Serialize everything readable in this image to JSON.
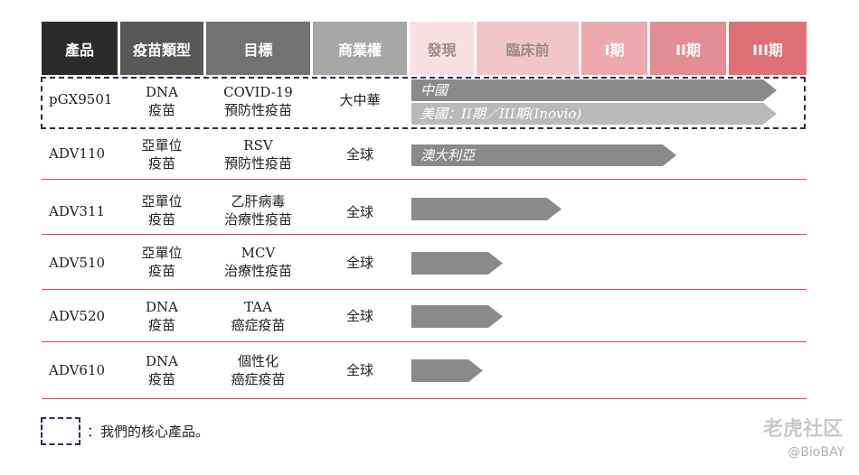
{
  "chart_data": {
    "type": "table",
    "columns": [
      "產品",
      "疫苗類型",
      "目標",
      "商業權",
      "發現",
      "臨床前",
      "I期",
      "II期",
      "III期"
    ],
    "column_colors": [
      "#2b2b2b",
      "#585858",
      "#727272",
      "#a7a7a7",
      "#f8e0e2",
      "#f2c6c9",
      "#eda9ad",
      "#e28e94",
      "#e07078"
    ],
    "header_text_colors": [
      "#ffffff",
      "#ffffff",
      "#ffffff",
      "#ffffff",
      "#9b8a8b",
      "#9b8a8b",
      "#ffffff",
      "#ffffff",
      "#ffffff"
    ],
    "stage_scale": [
      "發現",
      "臨床前",
      "I期",
      "II期",
      "III期"
    ],
    "rows": [
      {
        "product": "pGX9501",
        "type": [
          "DNA",
          "疫苗"
        ],
        "target": [
          "COVID-19",
          "預防性疫苗"
        ],
        "rights": "大中華",
        "core": true,
        "bars": [
          {
            "label": "中國",
            "progress": 0.925,
            "color": "#8a8a8a"
          },
          {
            "label": "美國：II期／III期(Inovio)",
            "progress": 0.925,
            "color": "#b9b9b9"
          }
        ]
      },
      {
        "product": "ADV110",
        "type": [
          "亞單位",
          "疫苗"
        ],
        "target": [
          "RSV",
          "預防性疫苗"
        ],
        "rights": "全球",
        "core": false,
        "bars": [
          {
            "label": "澳大利亞",
            "progress": 0.67,
            "color": "#8a8a8a"
          }
        ]
      },
      {
        "product": "ADV311",
        "type": [
          "亞單位",
          "疫苗"
        ],
        "target": [
          "乙肝病毒",
          "治療性疫苗"
        ],
        "rights": "全球",
        "core": false,
        "bars": [
          {
            "label": "",
            "progress": 0.38,
            "color": "#8a8a8a"
          }
        ]
      },
      {
        "product": "ADV510",
        "type": [
          "亞單位",
          "疫苗"
        ],
        "target": [
          "MCV",
          "治療性疫苗"
        ],
        "rights": "全球",
        "core": false,
        "bars": [
          {
            "label": "",
            "progress": 0.23,
            "color": "#8a8a8a"
          }
        ]
      },
      {
        "product": "ADV520",
        "type": [
          "DNA",
          "疫苗"
        ],
        "target": [
          "TAA",
          "癌症疫苗"
        ],
        "rights": "全球",
        "core": false,
        "bars": [
          {
            "label": "",
            "progress": 0.23,
            "color": "#8a8a8a"
          }
        ]
      },
      {
        "product": "ADV610",
        "type": [
          "DNA",
          "疫苗"
        ],
        "target": [
          "個性化",
          "癌症疫苗"
        ],
        "rights": "全球",
        "core": false,
        "bars": [
          {
            "label": "",
            "progress": 0.18,
            "color": "#8a8a8a"
          }
        ]
      }
    ]
  },
  "legend": {
    "text": "：我們的核心產品。"
  },
  "watermark": {
    "main": "老虎社区",
    "sub": "@BioBAY"
  }
}
